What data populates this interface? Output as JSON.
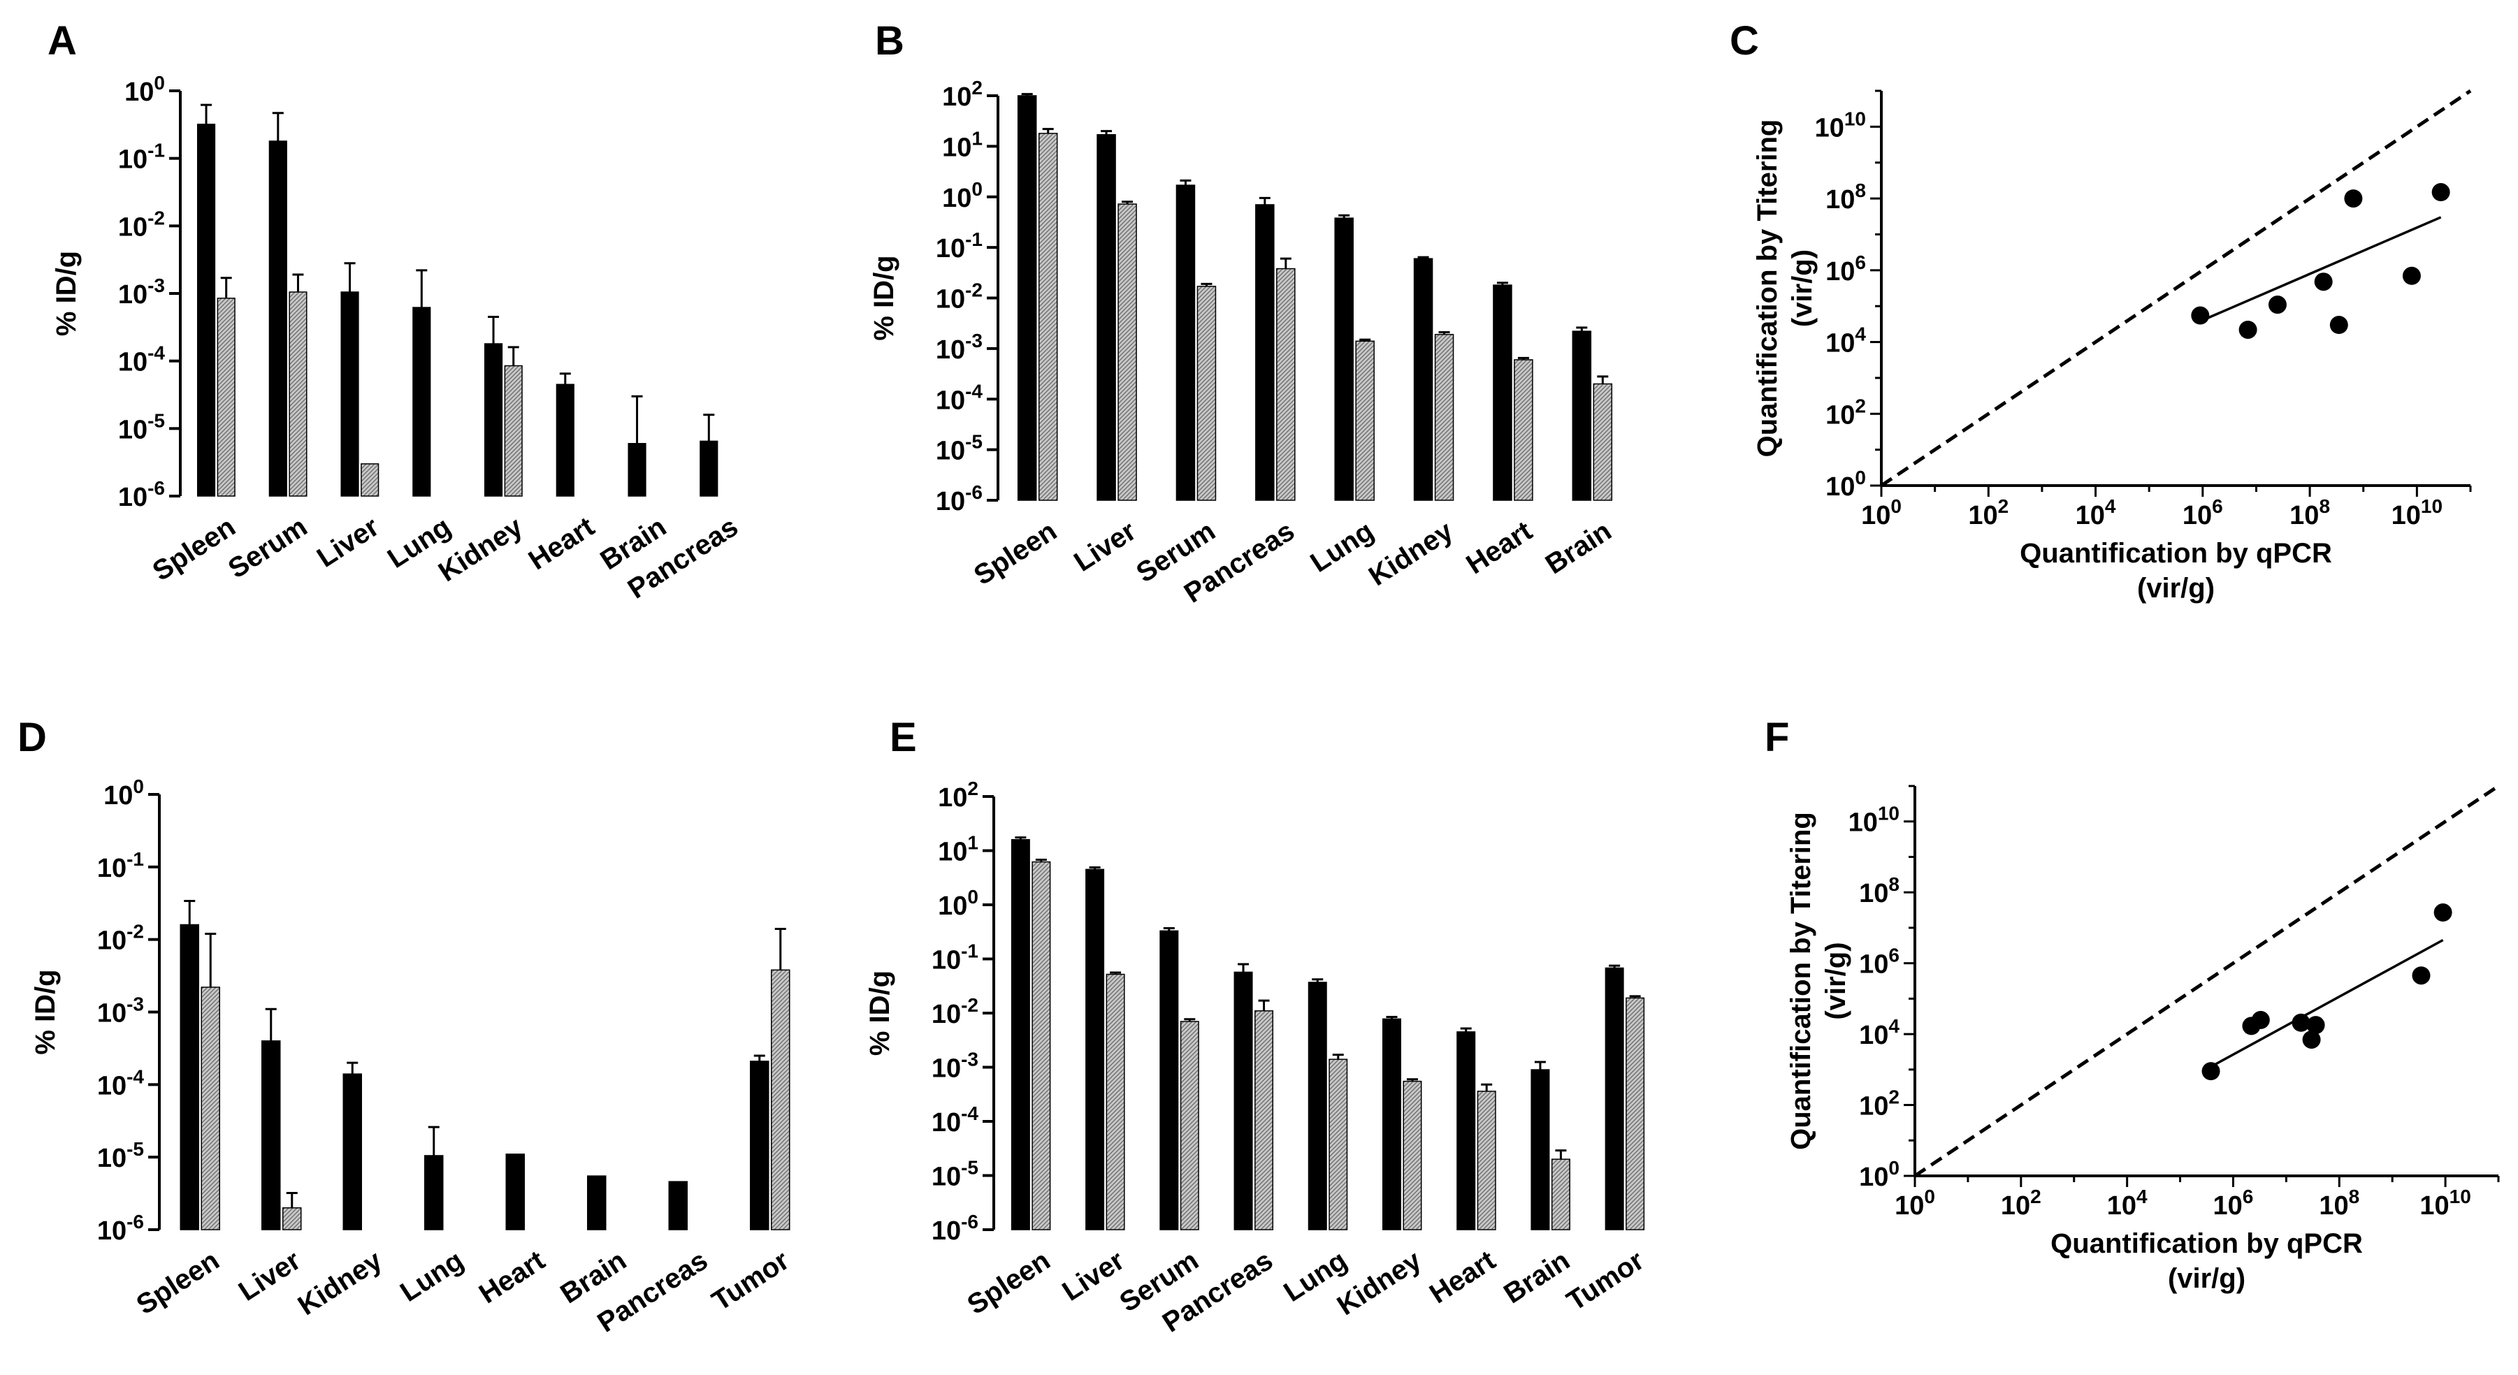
{
  "figure": {
    "chart_data": [
      {
        "panel": "A",
        "type": "bar",
        "scale": "log",
        "ylabel": "% ID/g",
        "ylim": [
          1e-06,
          1
        ],
        "y_ticks": [
          1e-06,
          1e-05,
          0.0001,
          0.001,
          0.01,
          0.1,
          1
        ],
        "categories": [
          "Spleen",
          "Serum",
          "Liver",
          "Lung",
          "Kidney",
          "Heart",
          "Brain",
          "Pancreas"
        ],
        "series": [
          {
            "name": "solid",
            "fill": "#000000",
            "values": [
              0.32,
              0.18,
              0.00105,
              0.00062,
              0.00018,
              4.5e-05,
              6e-06,
              6.5e-06
            ],
            "err": [
              0.62,
              0.47,
              0.0028,
              0.0022,
              0.00045,
              6.5e-05,
              3e-05,
              1.6e-05
            ]
          },
          {
            "name": "hatched",
            "fill": "#b3b3b3",
            "values": [
              0.00085,
              0.00105,
              3e-06,
              null,
              8.5e-05,
              null,
              null,
              null
            ],
            "err": [
              0.0017,
              0.0019,
              null,
              null,
              0.00016,
              null,
              null,
              null
            ]
          }
        ]
      },
      {
        "panel": "B",
        "type": "bar",
        "scale": "log",
        "ylabel": "% ID/g",
        "ylim": [
          1e-06,
          100
        ],
        "y_ticks": [
          1e-06,
          1e-05,
          0.0001,
          0.001,
          0.01,
          0.1,
          1,
          10,
          100
        ],
        "categories": [
          "Spleen",
          "Liver",
          "Serum",
          "Pancreas",
          "Lung",
          "Kidney",
          "Heart",
          "Brain"
        ],
        "series": [
          {
            "name": "solid",
            "fill": "#000000",
            "values": [
              100,
              17,
              1.7,
              0.7,
              0.38,
              0.06,
              0.018,
              0.0022
            ],
            "err": [
              108,
              20,
              2.1,
              0.95,
              0.43,
              0.064,
              0.02,
              0.0026
            ]
          },
          {
            "name": "hatched",
            "fill": "#b3b3b3",
            "values": [
              18,
              0.72,
              0.017,
              0.038,
              0.0014,
              0.0019,
              0.0006,
              0.0002
            ],
            "err": [
              22,
              0.8,
              0.019,
              0.06,
              0.0015,
              0.0021,
              0.00065,
              0.00028
            ]
          }
        ]
      },
      {
        "panel": "C",
        "type": "scatter",
        "scale": "log-log",
        "xlabel": [
          "Quantification by qPCR",
          "(vir/g)"
        ],
        "ylabel": [
          "Quantification by Titering",
          "(vir/g)"
        ],
        "xlim": [
          1,
          100000000000.0
        ],
        "ylim": [
          1,
          100000000000.0
        ],
        "x_ticks": [
          1,
          100,
          10000,
          1000000,
          100000000,
          10000000000
        ],
        "y_ticks": [
          1,
          100,
          10000,
          1000000,
          100000000,
          10000000000
        ],
        "x": [
          900000,
          7000000,
          25000000,
          180000000,
          350000000,
          650000000,
          8000000000,
          28000000000
        ],
        "y": [
          55000,
          22000,
          110000,
          480000,
          30000,
          100000000,
          700000,
          150000000
        ],
        "fit": {
          "x": [
            900000,
            28000000000
          ],
          "y": [
            38000,
            30000000
          ]
        },
        "reference": "dashed identity line y = x"
      },
      {
        "panel": "D",
        "type": "bar",
        "scale": "log",
        "ylabel": "% ID/g",
        "ylim": [
          1e-06,
          1
        ],
        "y_ticks": [
          1e-06,
          1e-05,
          0.0001,
          0.001,
          0.01,
          0.1,
          1
        ],
        "categories": [
          "Spleen",
          "Liver",
          "Kidney",
          "Lung",
          "Heart",
          "Brain",
          "Pancreas",
          "Tumor"
        ],
        "series": [
          {
            "name": "solid",
            "fill": "#000000",
            "values": [
              0.016,
              0.0004,
              0.00014,
              1.05e-05,
              1.1e-05,
              5.5e-06,
              4.6e-06,
              0.00021
            ],
            "err": [
              0.034,
              0.0011,
              0.0002,
              2.6e-05,
              null,
              null,
              null,
              0.00025
            ]
          },
          {
            "name": "hatched",
            "fill": "#b3b3b3",
            "values": [
              0.0022,
              2e-06,
              null,
              null,
              null,
              null,
              null,
              0.0038
            ],
            "err": [
              0.012,
              3.2e-06,
              null,
              null,
              null,
              null,
              null,
              0.014
            ]
          }
        ]
      },
      {
        "panel": "E",
        "type": "bar",
        "scale": "log",
        "ylabel": "% ID/g",
        "ylim": [
          1e-06,
          100
        ],
        "y_ticks": [
          1e-06,
          1e-05,
          0.0001,
          0.001,
          0.01,
          0.1,
          1,
          10,
          100
        ],
        "categories": [
          "Spleen",
          "Liver",
          "Serum",
          "Pancreas",
          "Lung",
          "Kidney",
          "Heart",
          "Brain",
          "Tumor"
        ],
        "series": [
          {
            "name": "solid",
            "fill": "#000000",
            "values": [
              16,
              4.5,
              0.33,
              0.057,
              0.037,
              0.0078,
              0.0045,
              0.0009,
              0.068
            ],
            "err": [
              17.5,
              4.9,
              0.37,
              0.08,
              0.042,
              0.0085,
              0.0052,
              0.00125,
              0.075
            ]
          },
          {
            "name": "hatched",
            "fill": "#b3b3b3",
            "values": [
              6.2,
              0.052,
              0.007,
              0.011,
              0.0014,
              0.00055,
              0.00036,
              2e-05,
              0.019
            ],
            "err": [
              6.8,
              0.056,
              0.0077,
              0.017,
              0.0017,
              0.0006,
              0.00048,
              2.9e-05,
              0.0205
            ]
          }
        ]
      },
      {
        "panel": "F",
        "type": "scatter",
        "scale": "log-log",
        "xlabel": [
          "Quantification by qPCR",
          "(vir/g)"
        ],
        "ylabel": [
          "Quantification by Titering",
          "(vir/g)"
        ],
        "xlim": [
          1,
          100000000000.0
        ],
        "ylim": [
          1,
          100000000000.0
        ],
        "x_ticks": [
          1,
          100,
          10000,
          1000000,
          100000000,
          10000000000
        ],
        "y_ticks": [
          1,
          100,
          10000,
          1000000,
          100000000,
          10000000000
        ],
        "x": [
          380000,
          2200000,
          3300000,
          19000000,
          30000000,
          36000000,
          3500000000,
          9000000000
        ],
        "y": [
          900,
          17000,
          25000,
          21000,
          7000,
          18000,
          450000,
          27000000
        ],
        "fit": {
          "x": [
            380000,
            9000000000
          ],
          "y": [
            1200,
            4500000
          ]
        },
        "reference": "dashed identity line y = x"
      }
    ]
  }
}
